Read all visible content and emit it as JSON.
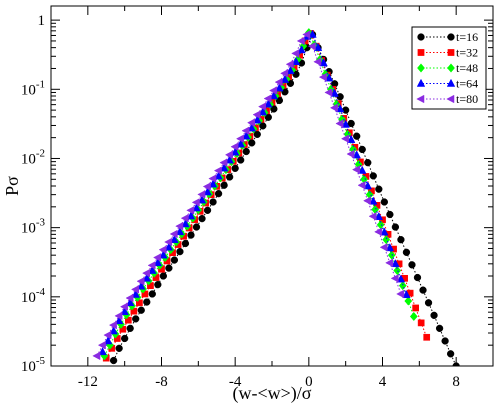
{
  "chart_data": {
    "type": "scatter",
    "title": "",
    "xlabel": "(w-<w>)/σ",
    "ylabel": "Pσ",
    "xlim": [
      -14,
      10
    ],
    "ylim": [
      1e-05,
      1.6
    ],
    "yscale": "log",
    "grid": false,
    "legend_position": "top-right",
    "x_ticks": [
      -12,
      -8,
      -4,
      0,
      4,
      8
    ],
    "x_tick_labels": [
      "-12",
      "-8",
      "-4",
      "0",
      "4",
      "8"
    ],
    "y_ticks": [
      1e-05,
      0.0001,
      0.001,
      0.01,
      0.1,
      1
    ],
    "y_tick_labels": [
      {
        "base": "10",
        "exp": "-5"
      },
      {
        "base": "10",
        "exp": "-4"
      },
      {
        "base": "10",
        "exp": "-3"
      },
      {
        "base": "10",
        "exp": "-2"
      },
      {
        "base": "10",
        "exp": "-1"
      },
      {
        "base": "1",
        "exp": ""
      }
    ],
    "series": [
      {
        "name": "t=16",
        "color": "#000000",
        "marker": "circle",
        "x": [
          -10.6,
          -10.3,
          -10.0,
          -9.7,
          -9.4,
          -9.1,
          -8.8,
          -8.5,
          -8.2,
          -7.9,
          -7.6,
          -7.3,
          -7.0,
          -6.7,
          -6.4,
          -6.1,
          -5.8,
          -5.5,
          -5.2,
          -4.9,
          -4.6,
          -4.3,
          -4.0,
          -3.7,
          -3.4,
          -3.1,
          -2.8,
          -2.5,
          -2.2,
          -1.9,
          -1.6,
          -1.3,
          -1.0,
          -0.7,
          -0.4,
          -0.1,
          0.2,
          0.5,
          0.8,
          1.1,
          1.4,
          1.7,
          2.0,
          2.3,
          2.6,
          2.9,
          3.2,
          3.5,
          3.8,
          4.1,
          4.4,
          4.7,
          5.0,
          5.3,
          5.6,
          5.9,
          6.2,
          6.5,
          6.8,
          7.1,
          7.4,
          7.7,
          8.0
        ],
        "y": [
          1.2e-05,
          1.8e-05,
          2.5e-05,
          3.5e-05,
          4.8e-05,
          6.4e-05,
          8.4e-05,
          0.00011,
          0.00015,
          0.0002,
          0.00026,
          0.00034,
          0.00045,
          0.00059,
          0.00078,
          0.00102,
          0.00135,
          0.00178,
          0.00235,
          0.0031,
          0.0041,
          0.0054,
          0.0072,
          0.0095,
          0.0126,
          0.0168,
          0.0223,
          0.0296,
          0.0394,
          0.052,
          0.069,
          0.092,
          0.122,
          0.165,
          0.24,
          0.4,
          0.62,
          0.4,
          0.27,
          0.18,
          0.12,
          0.078,
          0.05,
          0.032,
          0.021,
          0.0135,
          0.0087,
          0.0056,
          0.0036,
          0.00235,
          0.00155,
          0.00102,
          0.00067,
          0.00044,
          0.00029,
          0.00019,
          0.000125,
          8.2e-05,
          5.4e-05,
          3.5e-05,
          2.3e-05,
          1.5e-05,
          1e-05
        ]
      },
      {
        "name": "t=32",
        "color": "#ff0000",
        "marker": "square",
        "x": [
          -11.0,
          -10.7,
          -10.4,
          -10.1,
          -9.8,
          -9.5,
          -9.2,
          -8.9,
          -8.6,
          -8.3,
          -8.0,
          -7.7,
          -7.4,
          -7.1,
          -6.8,
          -6.5,
          -6.2,
          -5.9,
          -5.6,
          -5.3,
          -5.0,
          -4.7,
          -4.4,
          -4.1,
          -3.8,
          -3.5,
          -3.2,
          -2.9,
          -2.6,
          -2.3,
          -2.0,
          -1.7,
          -1.4,
          -1.1,
          -0.8,
          -0.5,
          -0.2,
          0.1,
          0.4,
          0.7,
          1.0,
          1.3,
          1.6,
          1.9,
          2.2,
          2.5,
          2.8,
          3.1,
          3.4,
          3.7,
          4.0,
          4.3,
          4.6,
          4.9,
          5.2,
          5.5,
          5.8,
          6.1,
          6.4
        ],
        "y": [
          1.3e-05,
          1.8e-05,
          2.5e-05,
          3.4e-05,
          4.6e-05,
          6.2e-05,
          8.2e-05,
          0.00011,
          0.000145,
          0.00019,
          0.00025,
          0.00033,
          0.000435,
          0.00057,
          0.00075,
          0.00099,
          0.0013,
          0.00172,
          0.00227,
          0.003,
          0.00395,
          0.0052,
          0.0069,
          0.0091,
          0.012,
          0.0159,
          0.021,
          0.0278,
          0.0368,
          0.0488,
          0.065,
          0.086,
          0.114,
          0.152,
          0.21,
          0.31,
          0.5,
          0.64,
          0.42,
          0.26,
          0.16,
          0.1,
          0.062,
          0.038,
          0.0235,
          0.0145,
          0.0089,
          0.0055,
          0.0034,
          0.0021,
          0.0013,
          0.0008,
          0.00049,
          0.0003,
          0.000185,
          0.000113,
          6.9e-05,
          4.2e-05,
          2.6e-05
        ]
      },
      {
        "name": "t=48",
        "color": "#00ff00",
        "marker": "diamond",
        "x": [
          -11.1,
          -10.8,
          -10.5,
          -10.2,
          -9.9,
          -9.6,
          -9.3,
          -9.0,
          -8.7,
          -8.4,
          -8.1,
          -7.8,
          -7.5,
          -7.2,
          -6.9,
          -6.6,
          -6.3,
          -6.0,
          -5.7,
          -5.4,
          -5.1,
          -4.8,
          -4.5,
          -4.2,
          -3.9,
          -3.6,
          -3.3,
          -3.0,
          -2.7,
          -2.4,
          -2.1,
          -1.8,
          -1.5,
          -1.2,
          -0.9,
          -0.6,
          -0.3,
          0.0,
          0.3,
          0.6,
          0.9,
          1.2,
          1.5,
          1.8,
          2.1,
          2.4,
          2.7,
          3.0,
          3.3,
          3.6,
          3.9,
          4.2,
          4.5,
          4.8,
          5.1,
          5.4,
          5.7
        ],
        "y": [
          1.4e-05,
          2e-05,
          2.9e-05,
          4e-05,
          5.5e-05,
          7.4e-05,
          9.8e-05,
          0.00013,
          0.00017,
          0.00022,
          0.000285,
          0.00037,
          0.00048,
          0.00062,
          0.00081,
          0.00105,
          0.00137,
          0.0018,
          0.00235,
          0.00308,
          0.004,
          0.00525,
          0.0069,
          0.009,
          0.0118,
          0.0155,
          0.0203,
          0.0267,
          0.035,
          0.046,
          0.0605,
          0.08,
          0.106,
          0.14,
          0.19,
          0.27,
          0.42,
          0.66,
          0.44,
          0.27,
          0.165,
          0.1,
          0.061,
          0.037,
          0.0224,
          0.0136,
          0.0082,
          0.005,
          0.003,
          0.00183,
          0.0011,
          0.00067,
          0.0004,
          0.00024,
          0.000145,
          8.7e-05,
          5.2e-05
        ]
      },
      {
        "name": "t=64",
        "color": "#0000ff",
        "marker": "triangle-up",
        "x": [
          -11.2,
          -10.9,
          -10.6,
          -10.3,
          -10.0,
          -9.7,
          -9.4,
          -9.1,
          -8.8,
          -8.5,
          -8.2,
          -7.9,
          -7.6,
          -7.3,
          -7.0,
          -6.7,
          -6.4,
          -6.1,
          -5.8,
          -5.5,
          -5.2,
          -4.9,
          -4.6,
          -4.3,
          -4.0,
          -3.7,
          -3.4,
          -3.1,
          -2.8,
          -2.5,
          -2.2,
          -1.9,
          -1.6,
          -1.3,
          -1.0,
          -0.7,
          -0.4,
          -0.1,
          0.2,
          0.5,
          0.8,
          1.1,
          1.4,
          1.7,
          2.0,
          2.3,
          2.6,
          2.9,
          3.2,
          3.5,
          3.8,
          4.1,
          4.4,
          4.7,
          5.0,
          5.3
        ],
        "y": [
          1.6e-05,
          2.3e-05,
          3.2e-05,
          4.5e-05,
          6.1e-05,
          8.2e-05,
          0.000108,
          0.000142,
          0.000185,
          0.00024,
          0.00031,
          0.0004,
          0.00052,
          0.00067,
          0.00087,
          0.00113,
          0.00147,
          0.00192,
          0.0025,
          0.00327,
          0.00425,
          0.00555,
          0.00725,
          0.00945,
          0.0123,
          0.0161,
          0.021,
          0.0274,
          0.0358,
          0.0468,
          0.061,
          0.08,
          0.104,
          0.138,
          0.185,
          0.25,
          0.37,
          0.58,
          0.62,
          0.4,
          0.24,
          0.145,
          0.087,
          0.052,
          0.031,
          0.0187,
          0.0112,
          0.0067,
          0.004,
          0.0024,
          0.00144,
          0.00086,
          0.00051,
          0.0003,
          0.00018,
          0.000107
        ]
      },
      {
        "name": "t=80",
        "color": "#8a2be2",
        "marker": "triangle-left",
        "x": [
          -11.5,
          -11.2,
          -10.9,
          -10.6,
          -10.3,
          -10.0,
          -9.7,
          -9.4,
          -9.1,
          -8.8,
          -8.5,
          -8.2,
          -7.9,
          -7.6,
          -7.3,
          -7.0,
          -6.7,
          -6.4,
          -6.1,
          -5.8,
          -5.5,
          -5.2,
          -4.9,
          -4.6,
          -4.3,
          -4.0,
          -3.7,
          -3.4,
          -3.1,
          -2.8,
          -2.5,
          -2.2,
          -1.9,
          -1.6,
          -1.3,
          -1.0,
          -0.7,
          -0.4,
          -0.1,
          0.2,
          0.5,
          0.8,
          1.1,
          1.4,
          1.7,
          2.0,
          2.3,
          2.6,
          2.9,
          3.2,
          3.5,
          3.8,
          4.1,
          4.4,
          4.7,
          5.0
        ],
        "y": [
          1.4e-05,
          2e-05,
          2.8e-05,
          3.9e-05,
          5.3e-05,
          7.2e-05,
          9.6e-05,
          0.000128,
          0.000168,
          0.00022,
          0.000285,
          0.00037,
          0.00048,
          0.00062,
          0.00081,
          0.00105,
          0.00137,
          0.00178,
          0.00232,
          0.00302,
          0.00393,
          0.00512,
          0.00667,
          0.0087,
          0.0113,
          0.0148,
          0.0193,
          0.0252,
          0.0329,
          0.043,
          0.0562,
          0.0735,
          0.096,
          0.127,
          0.17,
          0.23,
          0.33,
          0.5,
          0.62,
          0.42,
          0.25,
          0.15,
          0.09,
          0.054,
          0.032,
          0.0193,
          0.0116,
          0.0069,
          0.0041,
          0.00245,
          0.00146,
          0.00087,
          0.00052,
          0.00031,
          0.000185,
          0.00011
        ]
      }
    ]
  }
}
